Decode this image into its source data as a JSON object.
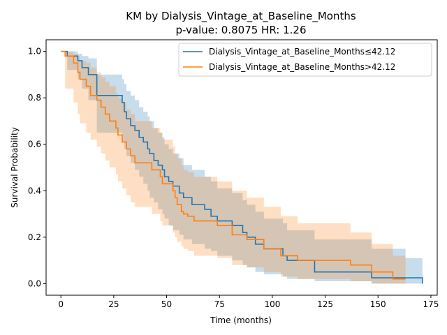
{
  "chart_data": {
    "type": "line",
    "title_line1": "KM by Dialysis_Vintage_at_Baseline_Months",
    "title_line2": "p-value: 0.8075  HR: 1.26",
    "xlabel": "Time (months)",
    "ylabel": "Survival Probability",
    "xlim": [
      -7,
      178
    ],
    "ylim": [
      -0.05,
      1.05
    ],
    "xticks": [
      0,
      25,
      50,
      75,
      100,
      125,
      150,
      175
    ],
    "yticks": [
      0.0,
      0.2,
      0.4,
      0.6,
      0.8,
      1.0
    ],
    "xtick_labels": [
      "0",
      "25",
      "50",
      "75",
      "100",
      "125",
      "150",
      "175"
    ],
    "ytick_labels": [
      "0.0",
      "0.2",
      "0.4",
      "0.6",
      "0.8",
      "1.0"
    ],
    "legend_position": "top-right",
    "series": [
      {
        "name": "Dialysis_Vintage_at_Baseline_Months≤42.12",
        "color": "#1f77b4",
        "times": [
          0,
          3,
          8,
          10,
          13,
          17,
          29,
          30,
          31,
          33,
          35,
          37,
          39,
          41,
          42,
          44,
          46,
          48,
          49,
          51,
          53,
          56,
          58,
          62,
          68,
          71,
          74,
          81,
          86,
          88,
          92,
          96,
          105,
          107,
          120,
          147,
          163,
          171
        ],
        "survival": [
          1.0,
          0.98,
          0.96,
          0.93,
          0.9,
          0.81,
          0.78,
          0.74,
          0.71,
          0.68,
          0.66,
          0.63,
          0.61,
          0.58,
          0.56,
          0.53,
          0.51,
          0.49,
          0.46,
          0.44,
          0.42,
          0.39,
          0.37,
          0.34,
          0.32,
          0.29,
          0.27,
          0.25,
          0.22,
          0.2,
          0.17,
          0.15,
          0.12,
          0.1,
          0.05,
          0.025,
          0.025,
          0.0
        ],
        "ci_lower": [
          1.0,
          0.92,
          0.88,
          0.84,
          0.79,
          0.65,
          0.61,
          0.58,
          0.55,
          0.52,
          0.49,
          0.46,
          0.43,
          0.4,
          0.37,
          0.35,
          0.32,
          0.3,
          0.28,
          0.25,
          0.23,
          0.21,
          0.19,
          0.17,
          0.15,
          0.14,
          0.12,
          0.1,
          0.08,
          0.07,
          0.05,
          0.04,
          0.03,
          0.02,
          0.01,
          0.0,
          0.0,
          0.0
        ],
        "ci_upper": [
          1.0,
          1.0,
          0.99,
          0.98,
          0.97,
          0.9,
          0.88,
          0.86,
          0.83,
          0.81,
          0.79,
          0.76,
          0.74,
          0.72,
          0.7,
          0.67,
          0.65,
          0.63,
          0.6,
          0.58,
          0.56,
          0.54,
          0.51,
          0.49,
          0.46,
          0.44,
          0.41,
          0.39,
          0.36,
          0.34,
          0.31,
          0.28,
          0.26,
          0.23,
          0.19,
          0.15,
          0.11,
          0.11
        ]
      },
      {
        "name": "Dialysis_Vintage_at_Baseline_Months>42.12",
        "color": "#ff7f0e",
        "times": [
          0,
          2,
          6,
          8,
          9,
          12,
          14,
          17,
          19,
          21,
          23,
          26,
          27,
          29,
          31,
          33,
          35,
          40,
          43,
          47,
          48,
          53,
          54,
          55,
          57,
          58,
          60,
          63,
          74,
          81,
          88,
          96,
          104,
          112,
          137,
          147,
          157,
          163
        ],
        "survival": [
          1.0,
          0.98,
          0.95,
          0.91,
          0.88,
          0.85,
          0.81,
          0.79,
          0.76,
          0.73,
          0.7,
          0.67,
          0.64,
          0.61,
          0.58,
          0.55,
          0.52,
          0.52,
          0.49,
          0.46,
          0.43,
          0.4,
          0.37,
          0.34,
          0.31,
          0.3,
          0.29,
          0.27,
          0.25,
          0.21,
          0.19,
          0.15,
          0.12,
          0.1,
          0.08,
          0.05,
          0.02,
          0.02
        ],
        "ci_lower": [
          1.0,
          0.84,
          0.78,
          0.73,
          0.69,
          0.65,
          0.62,
          0.59,
          0.56,
          0.53,
          0.5,
          0.47,
          0.44,
          0.41,
          0.38,
          0.35,
          0.33,
          0.33,
          0.3,
          0.27,
          0.25,
          0.22,
          0.2,
          0.18,
          0.16,
          0.15,
          0.14,
          0.12,
          0.11,
          0.08,
          0.07,
          0.05,
          0.03,
          0.02,
          0.01,
          0.0,
          0.0,
          0.0
        ],
        "ci_upper": [
          1.0,
          1.0,
          0.99,
          0.98,
          0.96,
          0.95,
          0.93,
          0.91,
          0.89,
          0.87,
          0.85,
          0.82,
          0.8,
          0.78,
          0.75,
          0.73,
          0.7,
          0.7,
          0.67,
          0.65,
          0.62,
          0.59,
          0.56,
          0.54,
          0.51,
          0.49,
          0.48,
          0.46,
          0.44,
          0.4,
          0.37,
          0.33,
          0.29,
          0.26,
          0.22,
          0.17,
          0.12,
          0.12
        ]
      }
    ]
  }
}
